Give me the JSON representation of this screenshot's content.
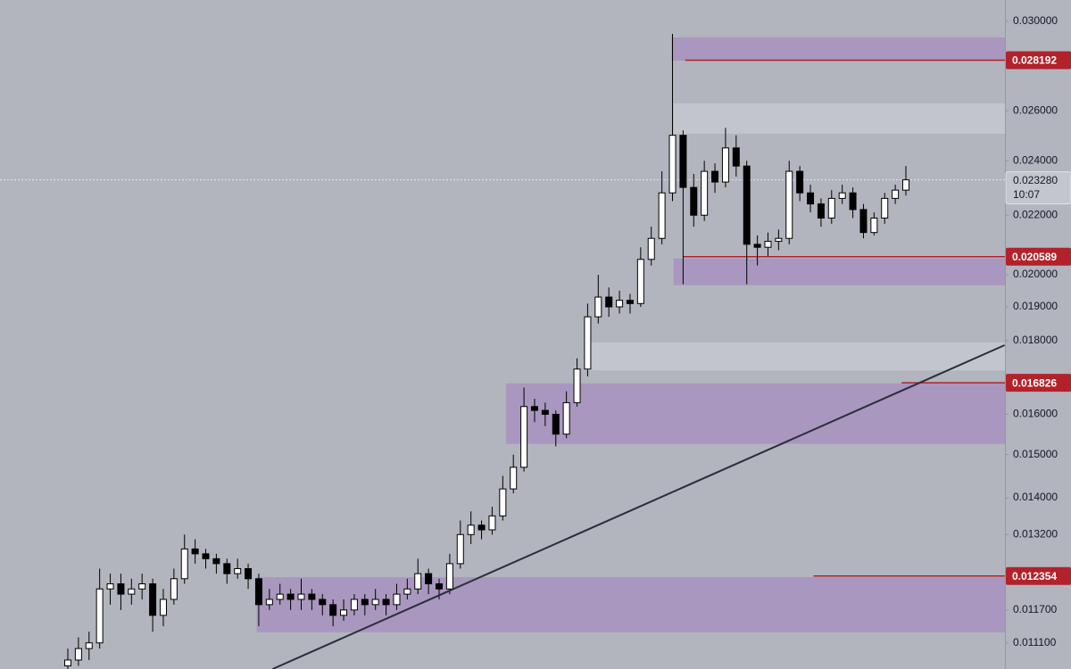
{
  "chart_data": {
    "type": "candlestick",
    "log_scale": true,
    "ylim": [
      0.010646,
      0.03104
    ],
    "yticks": [
      {
        "value": 0.0111,
        "label": "0.011100"
      },
      {
        "value": 0.0117,
        "label": "0.011700"
      },
      {
        "value": 0.0132,
        "label": "0.013200"
      },
      {
        "value": 0.014,
        "label": "0.014000"
      },
      {
        "value": 0.015,
        "label": "0.015000"
      },
      {
        "value": 0.016,
        "label": "0.016000"
      },
      {
        "value": 0.018,
        "label": "0.018000"
      },
      {
        "value": 0.019,
        "label": "0.019000"
      },
      {
        "value": 0.02,
        "label": "0.020000"
      },
      {
        "value": 0.022,
        "label": "0.022000"
      },
      {
        "value": 0.024,
        "label": "0.024000"
      },
      {
        "value": 0.026,
        "label": "0.026000"
      },
      {
        "value": 0.03,
        "label": "0.030000"
      }
    ],
    "background": "#b2b5be",
    "up_color": "#ffffff",
    "down_color": "#000000",
    "wick_color": "#000000",
    "open": [
      0.0107,
      0.0108,
      0.011,
      0.0111,
      0.0121,
      0.0122,
      0.012,
      0.0121,
      0.0122,
      0.0116,
      0.0119,
      0.0123,
      0.0129,
      0.0128,
      0.0127,
      0.0126,
      0.0124,
      0.0125,
      0.0123,
      0.0118,
      0.0119,
      0.012,
      0.0119,
      0.012,
      0.0119,
      0.0118,
      0.0116,
      0.0117,
      0.0119,
      0.0118,
      0.0119,
      0.0118,
      0.012,
      0.0121,
      0.0124,
      0.0122,
      0.0121,
      0.0126,
      0.0132,
      0.0134,
      0.0133,
      0.0136,
      0.0142,
      0.0147,
      0.0162,
      0.0161,
      0.016,
      0.0155,
      0.0163,
      0.0172,
      0.0187,
      0.0193,
      0.019,
      0.0192,
      0.0191,
      0.0205,
      0.0212,
      0.0228,
      0.025,
      0.023,
      0.022,
      0.0236,
      0.0232,
      0.0245,
      0.0238,
      0.021,
      0.0209,
      0.0211,
      0.0212,
      0.0236,
      0.0228,
      0.0224,
      0.0219,
      0.0226,
      0.0228,
      0.0222,
      0.0214,
      0.0219,
      0.0226,
      0.0229
    ],
    "high": [
      0.011,
      0.0112,
      0.0113,
      0.0125,
      0.0124,
      0.0124,
      0.0123,
      0.0124,
      0.0123,
      0.0121,
      0.0125,
      0.0132,
      0.0131,
      0.0129,
      0.0128,
      0.0127,
      0.0127,
      0.0126,
      0.0124,
      0.0121,
      0.0122,
      0.0121,
      0.0123,
      0.0121,
      0.012,
      0.0119,
      0.0119,
      0.012,
      0.012,
      0.0121,
      0.012,
      0.0122,
      0.0123,
      0.0127,
      0.0125,
      0.0123,
      0.0128,
      0.0135,
      0.0137,
      0.0135,
      0.0138,
      0.0145,
      0.015,
      0.0167,
      0.0164,
      0.0163,
      0.0161,
      0.0166,
      0.0175,
      0.0191,
      0.02,
      0.0196,
      0.0195,
      0.0194,
      0.0209,
      0.0216,
      0.0236,
      0.0294,
      0.0252,
      0.0235,
      0.024,
      0.0239,
      0.0253,
      0.025,
      0.024,
      0.0213,
      0.0214,
      0.0215,
      0.024,
      0.0238,
      0.0231,
      0.0226,
      0.0229,
      0.0231,
      0.023,
      0.0224,
      0.0221,
      0.0228,
      0.0231,
      0.0238
    ],
    "low": [
      0.0105,
      0.0107,
      0.0108,
      0.011,
      0.0118,
      0.0117,
      0.0118,
      0.0119,
      0.0113,
      0.0114,
      0.0118,
      0.0122,
      0.0126,
      0.0125,
      0.0124,
      0.0122,
      0.0123,
      0.0121,
      0.0114,
      0.0117,
      0.0118,
      0.0117,
      0.0117,
      0.0117,
      0.0116,
      0.0114,
      0.0115,
      0.0116,
      0.0116,
      0.0117,
      0.0116,
      0.0117,
      0.0119,
      0.012,
      0.012,
      0.0119,
      0.012,
      0.0125,
      0.013,
      0.0131,
      0.0132,
      0.0135,
      0.0141,
      0.0146,
      0.0158,
      0.0157,
      0.0152,
      0.0154,
      0.0162,
      0.017,
      0.0185,
      0.0187,
      0.0188,
      0.0188,
      0.019,
      0.0203,
      0.021,
      0.0225,
      0.0197,
      0.0216,
      0.0218,
      0.0228,
      0.023,
      0.0234,
      0.0197,
      0.0203,
      0.0206,
      0.0208,
      0.021,
      0.0225,
      0.0221,
      0.0216,
      0.0217,
      0.0224,
      0.0219,
      0.0212,
      0.0213,
      0.0217,
      0.0224,
      0.0227
    ],
    "close": [
      0.0108,
      0.011,
      0.0111,
      0.0121,
      0.0122,
      0.012,
      0.0121,
      0.0122,
      0.0116,
      0.0119,
      0.0123,
      0.0129,
      0.0128,
      0.0127,
      0.0126,
      0.0124,
      0.0125,
      0.0123,
      0.0118,
      0.0119,
      0.012,
      0.0119,
      0.012,
      0.0119,
      0.0118,
      0.0116,
      0.0117,
      0.0119,
      0.0118,
      0.0119,
      0.0118,
      0.012,
      0.0121,
      0.0124,
      0.0122,
      0.0121,
      0.0126,
      0.0132,
      0.0134,
      0.0133,
      0.0136,
      0.0142,
      0.0147,
      0.0162,
      0.0161,
      0.016,
      0.0155,
      0.0163,
      0.0172,
      0.0187,
      0.0193,
      0.019,
      0.0192,
      0.0191,
      0.0205,
      0.0212,
      0.0228,
      0.025,
      0.023,
      0.022,
      0.0236,
      0.0232,
      0.0245,
      0.0238,
      0.021,
      0.0209,
      0.0211,
      0.0212,
      0.0236,
      0.0228,
      0.0224,
      0.0219,
      0.0226,
      0.0228,
      0.0222,
      0.0214,
      0.0219,
      0.0226,
      0.0229,
      0.02328
    ],
    "zones": [
      {
        "hi": 0.02924,
        "lo": 0.02817,
        "start": 56.9,
        "color": "#a997bf"
      },
      {
        "hi": 0.02631,
        "lo": 0.02506,
        "start": 57.1,
        "color": "#c2c5cc"
      },
      {
        "hi": 0.01795,
        "lo": 0.01716,
        "start": 48.7,
        "color": "#c2c5cc"
      },
      {
        "hi": 0.02053,
        "lo": 0.01967,
        "start": 57.1,
        "color": "#a997bf"
      },
      {
        "hi": 0.01681,
        "lo": 0.01526,
        "start": 41.3,
        "color": "#a997bf"
      },
      {
        "hi": 0.01233,
        "lo": 0.01129,
        "start": 17.8,
        "color": "#a997bf"
      }
    ],
    "trendline": {
      "x": [
        19.3,
        88.3
      ],
      "y": [
        0.010646,
        0.01787
      ],
      "color": "#2a2e39"
    },
    "price_lines": [
      {
        "value": 0.028192,
        "start": 58.2,
        "color": "#b2222a"
      },
      {
        "value": 0.020589,
        "start": 58.0,
        "color": "#b2222a"
      },
      {
        "value": 0.016826,
        "start": 78.6,
        "color": "#b2222a"
      },
      {
        "value": 0.012354,
        "start": 70.3,
        "color": "#b2222a"
      }
    ],
    "last_price": {
      "value": 0.02328,
      "label": "0.023280"
    },
    "countdown": "10:07"
  }
}
